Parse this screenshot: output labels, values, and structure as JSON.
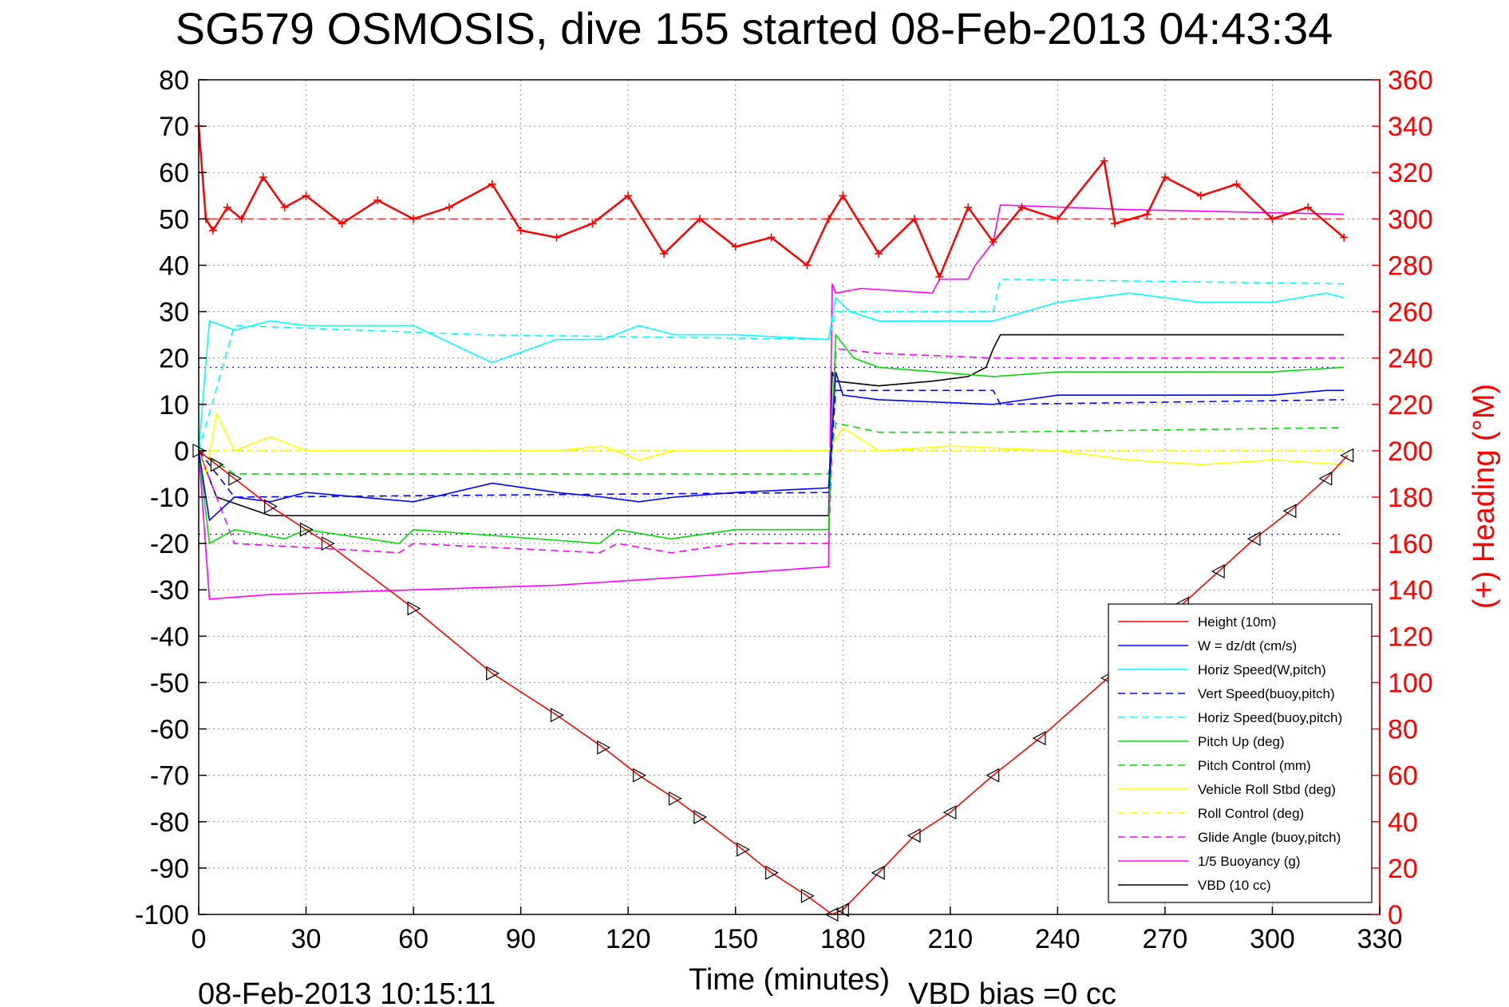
{
  "chart_data": {
    "type": "line",
    "title": "SG579 OSMOSIS, dive 155 started 08-Feb-2013 04:43:34",
    "xlabel": "Time (minutes)",
    "ylabel_right": "(+) Heading (°M)",
    "footer_left": "08-Feb-2013 10:15:11",
    "footer_right": "VBD bias =0 cc",
    "xlim": [
      0,
      330
    ],
    "ylim": [
      -100,
      80
    ],
    "ylim_right": [
      0,
      360
    ],
    "x_ticks": [
      "0",
      "30",
      "60",
      "90",
      "120",
      "150",
      "180",
      "210",
      "240",
      "270",
      "300",
      "330"
    ],
    "y_ticks": [
      "80",
      "70",
      "60",
      "50",
      "40",
      "30",
      "20",
      "10",
      "0",
      "-10",
      "-20",
      "-30",
      "-40",
      "-50",
      "-60",
      "-70",
      "-80",
      "-90",
      "-100"
    ],
    "y_right_ticks": [
      "360",
      "340",
      "320",
      "300",
      "280",
      "260",
      "240",
      "220",
      "200",
      "180",
      "160",
      "140",
      "120",
      "100",
      "80",
      "60",
      "40",
      "20",
      "0"
    ],
    "grid": true,
    "legend_position": "bottom-right",
    "legend": [
      {
        "name": "Height (10m)",
        "color": "#ff0000",
        "style": "solid"
      },
      {
        "name": "W = dz/dt (cm/s)",
        "color": "#0000ff",
        "style": "solid"
      },
      {
        "name": "Horiz Speed(W,pitch)",
        "color": "#00ffff",
        "style": "solid"
      },
      {
        "name": "Vert Speed(buoy,pitch)",
        "color": "#0000ff",
        "style": "dashed"
      },
      {
        "name": "Horiz Speed(buoy,pitch)",
        "color": "#00ffff",
        "style": "dashed"
      },
      {
        "name": "Pitch Up (deg)",
        "color": "#00dd00",
        "style": "solid"
      },
      {
        "name": "Pitch Control (mm)",
        "color": "#00dd00",
        "style": "dashed"
      },
      {
        "name": "Vehicle Roll Stbd (deg)",
        "color": "#ffff00",
        "style": "solid"
      },
      {
        "name": "Roll Control (deg)",
        "color": "#ffff00",
        "style": "dashed"
      },
      {
        "name": "Glide Angle (buoy,pitch)",
        "color": "#ff00ff",
        "style": "dashed"
      },
      {
        "name": "1/5 Buoyancy (g)",
        "color": "#ff00ff",
        "style": "solid"
      },
      {
        "name": "VBD (10 cc)",
        "color": "#000000",
        "style": "solid"
      }
    ],
    "series": [
      {
        "name": "Height (10m)",
        "x": [
          0,
          5,
          10,
          20,
          30,
          36,
          60,
          82,
          100,
          113,
          123,
          133,
          140,
          152,
          160,
          170,
          177,
          180,
          190,
          200,
          210,
          222,
          235,
          254,
          265,
          275,
          285,
          295,
          305,
          315,
          321
        ],
        "y": [
          0,
          -3,
          -6,
          -12,
          -17,
          -20,
          -34,
          -48,
          -57,
          -64,
          -70,
          -75,
          -79,
          -86,
          -91,
          -96,
          -100,
          -99,
          -91,
          -83,
          -78,
          -70,
          -62,
          -49,
          -42,
          -33,
          -26,
          -19,
          -13,
          -6,
          -1
        ]
      },
      {
        "name": "W = dz/dt (cm/s)",
        "x": [
          0,
          3,
          10,
          20,
          30,
          60,
          82,
          100,
          113,
          123,
          133,
          150,
          176,
          178,
          180,
          190,
          222,
          240,
          260,
          280,
          300,
          315,
          320
        ],
        "y": [
          0,
          -15,
          -10,
          -11,
          -9,
          -11,
          -7,
          -9,
          -10,
          -11,
          -10,
          -9,
          -8,
          17,
          12,
          11,
          10,
          12,
          12,
          12,
          12,
          13,
          13
        ]
      },
      {
        "name": "Horiz Speed(W,pitch)",
        "x": [
          0,
          3,
          10,
          20,
          30,
          60,
          82,
          100,
          113,
          123,
          133,
          150,
          176,
          178,
          182,
          190,
          222,
          240,
          260,
          280,
          300,
          315,
          320
        ],
        "y": [
          0,
          28,
          26,
          28,
          27,
          27,
          19,
          24,
          24,
          27,
          25,
          25,
          24,
          33,
          30,
          28,
          28,
          32,
          34,
          32,
          32,
          34,
          33
        ]
      },
      {
        "name": "Vert Speed(buoy,pitch)",
        "x": [
          0,
          10,
          176,
          178,
          222,
          224,
          320
        ],
        "y": [
          0,
          -10,
          -9,
          13,
          13,
          10,
          11
        ]
      },
      {
        "name": "Horiz Speed(buoy,pitch)",
        "x": [
          0,
          10,
          80,
          176,
          178,
          222,
          224,
          320
        ],
        "y": [
          0,
          27,
          25,
          24,
          30,
          30,
          37,
          36
        ]
      },
      {
        "name": "Pitch Up (deg)",
        "x": [
          0,
          3,
          10,
          24,
          30,
          56,
          60,
          112,
          117,
          132,
          150,
          176,
          178,
          183,
          190,
          222,
          240,
          300,
          320
        ],
        "y": [
          0,
          -20,
          -17,
          -19,
          -17,
          -20,
          -17,
          -20,
          -17,
          -19,
          -17,
          -17,
          25,
          20,
          18,
          16,
          17,
          17,
          18
        ]
      },
      {
        "name": "Pitch Control (mm)",
        "x": [
          0,
          10,
          176,
          178,
          190,
          222,
          320
        ],
        "y": [
          0,
          -5,
          -5,
          6,
          4,
          4,
          5
        ]
      },
      {
        "name": "Vehicle Roll Stbd (deg)",
        "x": [
          0,
          2,
          5,
          10,
          20,
          30,
          60,
          100,
          113,
          123,
          133,
          150,
          176,
          180,
          190,
          210,
          240,
          260,
          280,
          300,
          320
        ],
        "y": [
          0,
          -5,
          8,
          0,
          3,
          0,
          0,
          0,
          1,
          -2,
          0,
          0,
          0,
          5,
          0,
          1,
          0,
          -2,
          -3,
          -2,
          -3
        ]
      },
      {
        "name": "Roll Control (deg)",
        "x": [
          0,
          10,
          176,
          178,
          320
        ],
        "y": [
          0,
          0,
          0,
          0,
          0
        ]
      },
      {
        "name": "Glide Angle (buoy,pitch)",
        "x": [
          0,
          10,
          56,
          60,
          112,
          117,
          132,
          150,
          176,
          178,
          190,
          222,
          240,
          320
        ],
        "y": [
          0,
          -20,
          -22,
          -20,
          -22,
          -20,
          -22,
          -20,
          -20,
          22,
          21,
          20,
          20,
          20
        ]
      },
      {
        "name": "1/5 Buoyancy (g)",
        "x": [
          0,
          3,
          20,
          60,
          100,
          140,
          176,
          177,
          178,
          185,
          205,
          207,
          215,
          217,
          222,
          224,
          260,
          320
        ],
        "y": [
          0,
          -32,
          -31,
          -30,
          -29,
          -27,
          -25,
          36,
          34,
          35,
          34,
          37,
          37,
          40,
          45,
          53,
          52,
          51
        ]
      },
      {
        "name": "VBD (10 cc)",
        "x": [
          0,
          5,
          20,
          176,
          177,
          178,
          190,
          205,
          215,
          220,
          222,
          224,
          320
        ],
        "y": [
          0,
          -10,
          -14,
          -14,
          17,
          15,
          14,
          15,
          16,
          18,
          22,
          25,
          25
        ]
      }
    ],
    "heading_series": {
      "name": "Heading",
      "axis": "right",
      "x": [
        0,
        2,
        4,
        8,
        12,
        18,
        24,
        30,
        40,
        50,
        60,
        70,
        82,
        90,
        100,
        110,
        120,
        130,
        140,
        150,
        160,
        170,
        176,
        180,
        190,
        200,
        207,
        215,
        222,
        230,
        240,
        253,
        256,
        265,
        270,
        280,
        290,
        300,
        310,
        320
      ],
      "y": [
        340,
        300,
        295,
        305,
        300,
        318,
        305,
        310,
        298,
        308,
        300,
        305,
        315,
        295,
        292,
        298,
        310,
        285,
        300,
        288,
        292,
        280,
        300,
        310,
        285,
        300,
        275,
        305,
        290,
        305,
        300,
        325,
        298,
        302,
        318,
        310,
        315,
        300,
        305,
        292
      ]
    },
    "reference_lines": [
      {
        "value": 50,
        "color": "#ff0000",
        "style": "dashed"
      },
      {
        "value": 18,
        "color": "#0000ff",
        "style": "dotted"
      },
      {
        "value": -18,
        "color": "#0000ff",
        "style": "dotted"
      }
    ]
  }
}
